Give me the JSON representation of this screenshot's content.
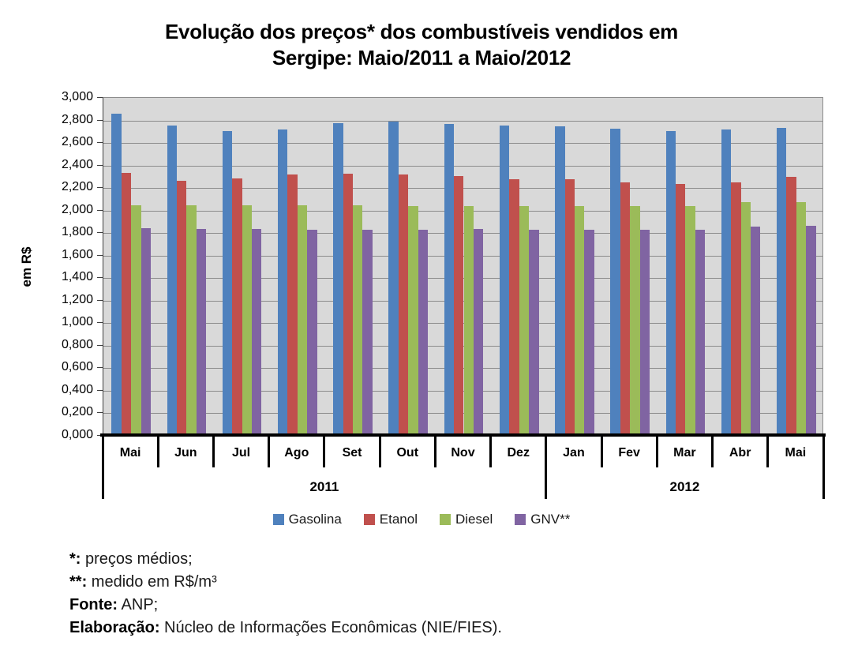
{
  "title": {
    "line1": "Evolução dos preços* dos combustíveis vendidos em",
    "line2": "Sergipe: Maio/2011 a Maio/2012"
  },
  "chart_data": {
    "type": "bar",
    "title": "Evolução dos preços* dos combustíveis vendidos em Sergipe: Maio/2011 a Maio/2012",
    "xlabel": "",
    "ylabel": "em R$",
    "ylim": [
      0,
      3.0
    ],
    "ytick_step": 0.2,
    "ytick_labels": [
      "0,000",
      "0,200",
      "0,400",
      "0,600",
      "0,800",
      "1,000",
      "1,200",
      "1,400",
      "1,600",
      "1,800",
      "2,000",
      "2,200",
      "2,400",
      "2,600",
      "2,800",
      "3,000"
    ],
    "grid": true,
    "legend_position": "bottom",
    "plot_background": "#D9D9D9",
    "gridline_color": "#8C8C8C",
    "categories": [
      "Mai",
      "Jun",
      "Jul",
      "Ago",
      "Set",
      "Out",
      "Nov",
      "Dez",
      "Jan",
      "Fev",
      "Mar",
      "Abr",
      "Mai"
    ],
    "year_groups": [
      {
        "label": "2011",
        "span": 8
      },
      {
        "label": "2012",
        "span": 5
      }
    ],
    "series": [
      {
        "name": "Gasolina",
        "color": "#4F81BD",
        "values": [
          2.85,
          2.75,
          2.7,
          2.71,
          2.77,
          2.78,
          2.76,
          2.75,
          2.74,
          2.72,
          2.7,
          2.71,
          2.73
        ]
      },
      {
        "name": "Etanol",
        "color": "#C0504D",
        "values": [
          2.33,
          2.26,
          2.28,
          2.31,
          2.32,
          2.31,
          2.3,
          2.27,
          2.27,
          2.24,
          2.23,
          2.24,
          2.29
        ]
      },
      {
        "name": "Diesel",
        "color": "#9BBB59",
        "values": [
          2.04,
          2.04,
          2.04,
          2.04,
          2.04,
          2.03,
          2.03,
          2.03,
          2.03,
          2.03,
          2.03,
          2.07,
          2.07
        ]
      },
      {
        "name": "GNV**",
        "color": "#8064A2",
        "values": [
          1.84,
          1.83,
          1.83,
          1.82,
          1.82,
          1.82,
          1.83,
          1.82,
          1.82,
          1.82,
          1.82,
          1.85,
          1.86
        ]
      }
    ]
  },
  "footnotes": [
    {
      "bold": "*:",
      "text": " preços médios;"
    },
    {
      "bold": "**:",
      "text": " medido em R$/m³"
    },
    {
      "bold": "Fonte:",
      "text": " ANP;"
    },
    {
      "bold": "Elaboração:",
      "text": " Núcleo de Informações Econômicas (NIE/FIES)."
    }
  ]
}
